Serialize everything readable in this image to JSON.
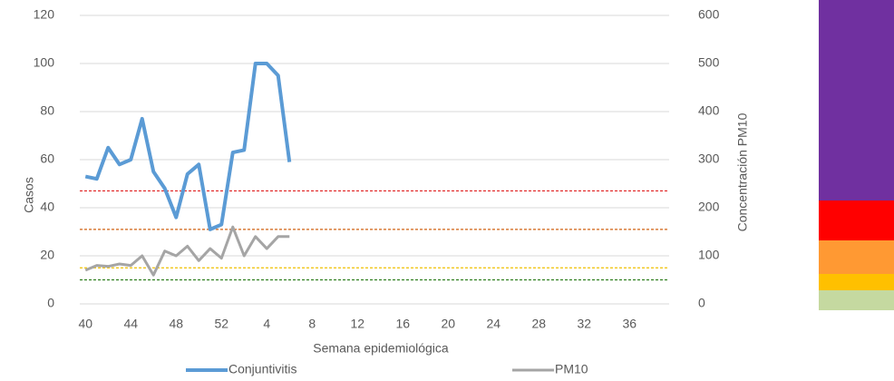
{
  "chart_data": {
    "type": "line",
    "x_label": "Semana epidemiológica",
    "y_label": "Casos",
    "y2_label": "Concentración PM10",
    "categories": [
      40,
      null,
      null,
      null,
      44,
      null,
      null,
      null,
      48,
      null,
      null,
      null,
      52,
      null,
      null,
      null,
      4,
      null,
      null,
      null,
      8,
      null,
      null,
      null,
      12,
      null,
      null,
      null,
      16,
      null,
      null,
      null,
      20,
      null,
      null,
      null,
      24,
      null,
      null,
      null,
      28,
      null,
      null,
      null,
      32,
      null,
      null,
      null,
      36,
      null,
      null,
      null
    ],
    "series": [
      {
        "name": "Conjuntivitis",
        "color": "#5b9bd5",
        "values": [
          53,
          52,
          65,
          58,
          60,
          77,
          55,
          48,
          36,
          54,
          58,
          31,
          33,
          63,
          64,
          100,
          100,
          95,
          59,
          null,
          null,
          null,
          null,
          null,
          null,
          null,
          null,
          null,
          null,
          null,
          null,
          null,
          null,
          null,
          null,
          null,
          null,
          null,
          null,
          null,
          null,
          null,
          null,
          null,
          null,
          null,
          null,
          null,
          null,
          null,
          null,
          null
        ]
      },
      {
        "name": "PM10",
        "color": "#a5a5a5",
        "axis": "y2",
        "values": [
          70,
          80,
          78,
          83,
          80,
          100,
          60,
          110,
          100,
          120,
          90,
          115,
          95,
          160,
          100,
          140,
          115,
          140,
          140,
          null,
          null,
          null,
          null,
          null,
          null,
          null,
          null,
          null,
          null,
          null,
          null,
          null,
          null,
          null,
          null,
          null,
          null,
          null,
          null,
          null,
          null,
          null,
          null,
          null,
          null,
          null,
          null,
          null,
          null,
          null,
          null,
          null
        ]
      }
    ],
    "thresholds": [
      {
        "value": 235,
        "color": "#e02020"
      },
      {
        "value": 155,
        "color": "#d06010"
      },
      {
        "value": 75,
        "color": "#f0c000"
      },
      {
        "value": 50,
        "color": "#308020"
      }
    ],
    "ylim": [
      0,
      120
    ],
    "yticks": [
      0,
      20,
      40,
      60,
      80,
      100,
      120
    ],
    "y2lim": [
      0,
      600
    ],
    "y2ticks": [
      0,
      100,
      200,
      300,
      400,
      500,
      600
    ],
    "grid": true
  }
}
